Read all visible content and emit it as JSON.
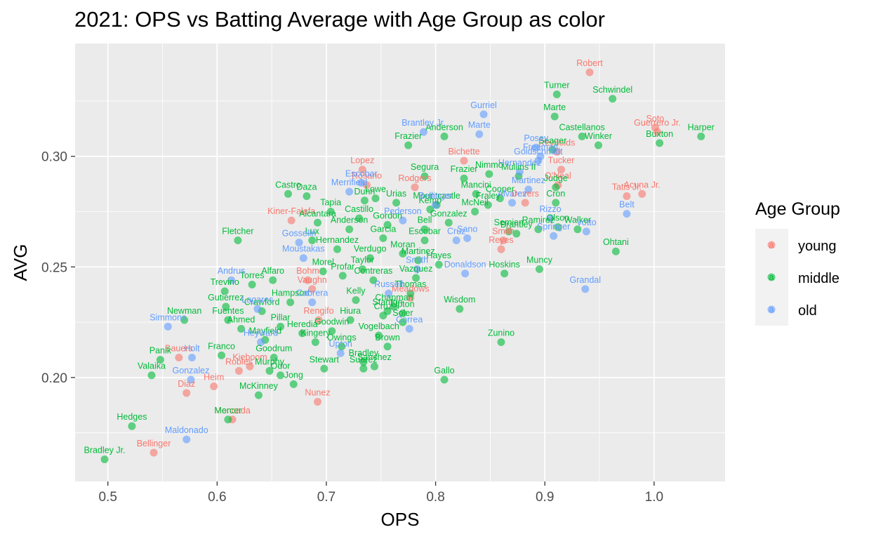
{
  "chart_data": {
    "type": "scatter",
    "title": "2021: OPS vs Batting Average with Age Group as color",
    "xlabel": "OPS",
    "ylabel": "AVG",
    "xlim": [
      0.47,
      1.065
    ],
    "ylim": [
      0.153,
      0.351
    ],
    "xticks": [
      0.5,
      0.6,
      0.7,
      0.8,
      0.9,
      1.0
    ],
    "xtick_labels": [
      "0.5",
      "0.6",
      "0.7",
      "0.8",
      "0.9",
      "1.0"
    ],
    "yticks": [
      0.2,
      0.25,
      0.3
    ],
    "ytick_labels": [
      "0.20",
      "0.25",
      "0.30"
    ],
    "grid": true,
    "legend": {
      "title": "Age Group",
      "position": "right",
      "entries": [
        {
          "name": "young",
          "color": "#F8766D"
        },
        {
          "name": "middle",
          "color": "#00BA38"
        },
        {
          "name": "old",
          "color": "#619CFF"
        }
      ]
    },
    "series": [
      {
        "name": "young",
        "color": "#F8766D",
        "points": [
          {
            "x": 0.941,
            "y": 0.338,
            "label": "Robert"
          },
          {
            "x": 1.001,
            "y": 0.313,
            "label": "Soto"
          },
          {
            "x": 1.003,
            "y": 0.311,
            "label": "Guerrero Jr."
          },
          {
            "x": 0.989,
            "y": 0.283,
            "label": "Acuna Jr."
          },
          {
            "x": 0.975,
            "y": 0.282,
            "label": "Tatis Jr."
          },
          {
            "x": 0.915,
            "y": 0.294,
            "label": "Tucker"
          },
          {
            "x": 0.911,
            "y": 0.302,
            "label": "Reynolds"
          },
          {
            "x": 0.912,
            "y": 0.287,
            "label": "O'Neal"
          },
          {
            "x": 0.882,
            "y": 0.279,
            "label": "Devers"
          },
          {
            "x": 0.826,
            "y": 0.298,
            "label": "Bichette"
          },
          {
            "x": 0.781,
            "y": 0.286,
            "label": "Rodgers"
          },
          {
            "x": 0.733,
            "y": 0.294,
            "label": "Lopez"
          },
          {
            "x": 0.737,
            "y": 0.287,
            "label": "Rosario"
          },
          {
            "x": 0.668,
            "y": 0.271,
            "label": "Kiner-Falefa"
          },
          {
            "x": 0.683,
            "y": 0.244,
            "label": "Bohm"
          },
          {
            "x": 0.86,
            "y": 0.258,
            "label": "Reyes"
          },
          {
            "x": 0.862,
            "y": 0.262,
            "label": "Smith"
          },
          {
            "x": 0.777,
            "y": 0.236,
            "label": "Meadows"
          },
          {
            "x": 0.565,
            "y": 0.209,
            "label": "Bauers"
          },
          {
            "x": 0.572,
            "y": 0.193,
            "label": "Diaz"
          },
          {
            "x": 0.597,
            "y": 0.196,
            "label": "Heim"
          },
          {
            "x": 0.62,
            "y": 0.203,
            "label": "Robles"
          },
          {
            "x": 0.63,
            "y": 0.205,
            "label": "Kieboom"
          },
          {
            "x": 0.542,
            "y": 0.166,
            "label": "Bellinger"
          },
          {
            "x": 0.614,
            "y": 0.181,
            "label": "Moncada"
          },
          {
            "x": 0.692,
            "y": 0.189,
            "label": "Nunez"
          },
          {
            "x": 0.687,
            "y": 0.24,
            "label": "Vaughn"
          },
          {
            "x": 0.693,
            "y": 0.226,
            "label": "Rengifo"
          }
        ]
      },
      {
        "name": "middle",
        "color": "#00BA38",
        "points": [
          {
            "x": 0.911,
            "y": 0.328,
            "label": "Turner"
          },
          {
            "x": 0.962,
            "y": 0.326,
            "label": "Schwindel"
          },
          {
            "x": 0.909,
            "y": 0.318,
            "label": "Marte"
          },
          {
            "x": 0.934,
            "y": 0.309,
            "label": "Castellanos"
          },
          {
            "x": 0.949,
            "y": 0.305,
            "label": "Winker"
          },
          {
            "x": 1.043,
            "y": 0.309,
            "label": "Harper"
          },
          {
            "x": 1.005,
            "y": 0.306,
            "label": "Buxton"
          },
          {
            "x": 0.907,
            "y": 0.303,
            "label": "Seager"
          },
          {
            "x": 0.808,
            "y": 0.309,
            "label": "Anderson"
          },
          {
            "x": 0.775,
            "y": 0.305,
            "label": "Frazier"
          },
          {
            "x": 0.859,
            "y": 0.281,
            "label": "Cooper"
          },
          {
            "x": 0.91,
            "y": 0.286,
            "label": "Judge"
          },
          {
            "x": 0.91,
            "y": 0.279,
            "label": "Cron"
          },
          {
            "x": 0.965,
            "y": 0.257,
            "label": "Ohtani"
          },
          {
            "x": 0.895,
            "y": 0.249,
            "label": "Muncy"
          },
          {
            "x": 0.822,
            "y": 0.231,
            "label": "Wisdom"
          },
          {
            "x": 0.86,
            "y": 0.216,
            "label": "Zunino"
          },
          {
            "x": 0.808,
            "y": 0.199,
            "label": "Gallo"
          },
          {
            "x": 0.863,
            "y": 0.247,
            "label": "Hoskins"
          },
          {
            "x": 0.665,
            "y": 0.283,
            "label": "Castro"
          },
          {
            "x": 0.682,
            "y": 0.282,
            "label": "Daza"
          },
          {
            "x": 0.619,
            "y": 0.262,
            "label": "Fletcher"
          },
          {
            "x": 0.57,
            "y": 0.226,
            "label": "Newman"
          },
          {
            "x": 0.548,
            "y": 0.208,
            "label": "Panik"
          },
          {
            "x": 0.54,
            "y": 0.201,
            "label": "Valaika"
          },
          {
            "x": 0.522,
            "y": 0.178,
            "label": "Hedges"
          },
          {
            "x": 0.497,
            "y": 0.163,
            "label": "Bradley Jr."
          },
          {
            "x": 0.638,
            "y": 0.192,
            "label": "McKinney"
          },
          {
            "x": 0.61,
            "y": 0.181,
            "label": "Mercer"
          },
          {
            "x": 0.734,
            "y": 0.204,
            "label": "Suarez"
          },
          {
            "x": 0.698,
            "y": 0.204,
            "label": "Stewart"
          },
          {
            "x": 0.756,
            "y": 0.214,
            "label": "Brown"
          },
          {
            "x": 0.748,
            "y": 0.219,
            "label": "Vogelbach"
          },
          {
            "x": 0.607,
            "y": 0.239,
            "label": "Trevino"
          },
          {
            "x": 0.608,
            "y": 0.232,
            "label": "Gutierrez"
          },
          {
            "x": 0.61,
            "y": 0.226,
            "label": "Fuentes"
          },
          {
            "x": 0.622,
            "y": 0.222,
            "label": "Ahmed"
          },
          {
            "x": 0.604,
            "y": 0.21,
            "label": "Franco"
          },
          {
            "x": 0.644,
            "y": 0.217,
            "label": "Mayfield"
          },
          {
            "x": 0.652,
            "y": 0.209,
            "label": "Goodrum"
          },
          {
            "x": 0.648,
            "y": 0.203,
            "label": "Murphy"
          },
          {
            "x": 0.658,
            "y": 0.201,
            "label": "Odor"
          },
          {
            "x": 0.67,
            "y": 0.197,
            "label": "Jong"
          },
          {
            "x": 0.705,
            "y": 0.221,
            "label": "Goodwin"
          },
          {
            "x": 0.734,
            "y": 0.207,
            "label": "Bradley"
          },
          {
            "x": 0.744,
            "y": 0.205,
            "label": "Sanchez"
          },
          {
            "x": 0.735,
            "y": 0.28,
            "label": "Dunn"
          },
          {
            "x": 0.79,
            "y": 0.291,
            "label": "Segura"
          },
          {
            "x": 0.826,
            "y": 0.29,
            "label": "Frazier"
          },
          {
            "x": 0.849,
            "y": 0.292,
            "label": "Nimmo"
          },
          {
            "x": 0.876,
            "y": 0.291,
            "label": "Mullins II"
          },
          {
            "x": 0.836,
            "y": 0.275,
            "label": "McNeil"
          },
          {
            "x": 0.867,
            "y": 0.266,
            "label": "Semien"
          },
          {
            "x": 0.894,
            "y": 0.267,
            "label": "Ramirez"
          },
          {
            "x": 0.93,
            "y": 0.267,
            "label": "Walker"
          },
          {
            "x": 0.912,
            "y": 0.268,
            "label": "Olson"
          },
          {
            "x": 0.777,
            "y": 0.238,
            "label": "Thomas"
          },
          {
            "x": 0.762,
            "y": 0.232,
            "label": "Chapman"
          },
          {
            "x": 0.77,
            "y": 0.225,
            "label": "Soler"
          },
          {
            "x": 0.756,
            "y": 0.23,
            "label": "Stanton"
          },
          {
            "x": 0.743,
            "y": 0.244,
            "label": "Contreras"
          },
          {
            "x": 0.77,
            "y": 0.256,
            "label": "Moran"
          },
          {
            "x": 0.752,
            "y": 0.263,
            "label": "Garcia"
          },
          {
            "x": 0.721,
            "y": 0.267,
            "label": "Anderson"
          },
          {
            "x": 0.704,
            "y": 0.275,
            "label": "Tapia"
          },
          {
            "x": 0.692,
            "y": 0.27,
            "label": "Alcantara"
          },
          {
            "x": 0.71,
            "y": 0.258,
            "label": "Hernandez"
          },
          {
            "x": 0.784,
            "y": 0.253,
            "label": "Martinez"
          },
          {
            "x": 0.795,
            "y": 0.276,
            "label": "Kemp"
          },
          {
            "x": 0.764,
            "y": 0.279,
            "label": "Urias"
          },
          {
            "x": 0.745,
            "y": 0.281,
            "label": "Lowe"
          },
          {
            "x": 0.651,
            "y": 0.244,
            "label": "Alfaro"
          },
          {
            "x": 0.632,
            "y": 0.242,
            "label": "Torres"
          },
          {
            "x": 0.667,
            "y": 0.234,
            "label": "Hampson"
          },
          {
            "x": 0.641,
            "y": 0.23,
            "label": "Crawford"
          },
          {
            "x": 0.714,
            "y": 0.214,
            "label": "Owings"
          },
          {
            "x": 0.69,
            "y": 0.216,
            "label": "Kingery"
          },
          {
            "x": 0.678,
            "y": 0.22,
            "label": "Heredia"
          },
          {
            "x": 0.801,
            "y": 0.278,
            "label": "Mountcastle"
          },
          {
            "x": 0.812,
            "y": 0.27,
            "label": "Gonzalez"
          },
          {
            "x": 0.79,
            "y": 0.262,
            "label": "Escobar"
          },
          {
            "x": 0.803,
            "y": 0.251,
            "label": "Hayes"
          },
          {
            "x": 0.837,
            "y": 0.283,
            "label": "Mancini"
          },
          {
            "x": 0.848,
            "y": 0.278,
            "label": "Fraley"
          },
          {
            "x": 0.874,
            "y": 0.265,
            "label": "Brantley"
          },
          {
            "x": 0.727,
            "y": 0.235,
            "label": "Kelly"
          },
          {
            "x": 0.752,
            "y": 0.228,
            "label": "Cruz"
          },
          {
            "x": 0.77,
            "y": 0.229,
            "label": "Upton"
          },
          {
            "x": 0.715,
            "y": 0.246,
            "label": "Profar"
          },
          {
            "x": 0.74,
            "y": 0.254,
            "label": "Verdugo"
          },
          {
            "x": 0.687,
            "y": 0.262,
            "label": "Lux"
          },
          {
            "x": 0.697,
            "y": 0.248,
            "label": "Morel"
          },
          {
            "x": 0.722,
            "y": 0.226,
            "label": "Hiura"
          },
          {
            "x": 0.658,
            "y": 0.223,
            "label": "Pillar"
          },
          {
            "x": 0.79,
            "y": 0.267,
            "label": "Bell"
          },
          {
            "x": 0.756,
            "y": 0.269,
            "label": "Gordon"
          },
          {
            "x": 0.73,
            "y": 0.272,
            "label": "Castillo"
          },
          {
            "x": 0.782,
            "y": 0.245,
            "label": "Vazquez"
          },
          {
            "x": 0.733,
            "y": 0.249,
            "label": "Taylor"
          }
        ]
      },
      {
        "name": "old",
        "color": "#619CFF",
        "points": [
          {
            "x": 0.844,
            "y": 0.319,
            "label": "Gurriel"
          },
          {
            "x": 0.789,
            "y": 0.311,
            "label": "Brantley Jr."
          },
          {
            "x": 0.84,
            "y": 0.31,
            "label": "Marte"
          },
          {
            "x": 0.892,
            "y": 0.304,
            "label": "Posey"
          },
          {
            "x": 0.896,
            "y": 0.3,
            "label": "Freeman"
          },
          {
            "x": 0.894,
            "y": 0.298,
            "label": "Goldschmidt"
          },
          {
            "x": 0.877,
            "y": 0.293,
            "label": "Hernandez"
          },
          {
            "x": 0.885,
            "y": 0.285,
            "label": "Martinez"
          },
          {
            "x": 0.87,
            "y": 0.279,
            "label": "Alvarez"
          },
          {
            "x": 0.905,
            "y": 0.272,
            "label": "Rizzo"
          },
          {
            "x": 0.908,
            "y": 0.264,
            "label": "Springer"
          },
          {
            "x": 0.938,
            "y": 0.266,
            "label": "Votto"
          },
          {
            "x": 0.975,
            "y": 0.274,
            "label": "Belt"
          },
          {
            "x": 0.937,
            "y": 0.24,
            "label": "Grandal"
          },
          {
            "x": 0.827,
            "y": 0.247,
            "label": "Donaldson"
          },
          {
            "x": 0.721,
            "y": 0.284,
            "label": "Merrifield"
          },
          {
            "x": 0.732,
            "y": 0.288,
            "label": "Escobar"
          },
          {
            "x": 0.675,
            "y": 0.261,
            "label": "Gosselin"
          },
          {
            "x": 0.613,
            "y": 0.244,
            "label": "Andrus"
          },
          {
            "x": 0.637,
            "y": 0.231,
            "label": "Lagares"
          },
          {
            "x": 0.555,
            "y": 0.223,
            "label": "Simmons"
          },
          {
            "x": 0.577,
            "y": 0.209,
            "label": "Holt"
          },
          {
            "x": 0.576,
            "y": 0.199,
            "label": "Gonzalez"
          },
          {
            "x": 0.572,
            "y": 0.172,
            "label": "Maldonado"
          },
          {
            "x": 0.64,
            "y": 0.216,
            "label": "Heyward"
          },
          {
            "x": 0.713,
            "y": 0.211,
            "label": "Upton"
          },
          {
            "x": 0.776,
            "y": 0.222,
            "label": "Correa"
          },
          {
            "x": 0.679,
            "y": 0.254,
            "label": "Moustakas"
          },
          {
            "x": 0.687,
            "y": 0.234,
            "label": "Cabrera"
          },
          {
            "x": 0.757,
            "y": 0.238,
            "label": "Russell"
          },
          {
            "x": 0.783,
            "y": 0.249,
            "label": "Smith"
          },
          {
            "x": 0.829,
            "y": 0.263,
            "label": "Sano"
          },
          {
            "x": 0.819,
            "y": 0.262,
            "label": "Cruz"
          },
          {
            "x": 0.8,
            "y": 0.278,
            "label": "Bellinger"
          },
          {
            "x": 0.77,
            "y": 0.271,
            "label": "Pederson"
          }
        ]
      }
    ]
  }
}
